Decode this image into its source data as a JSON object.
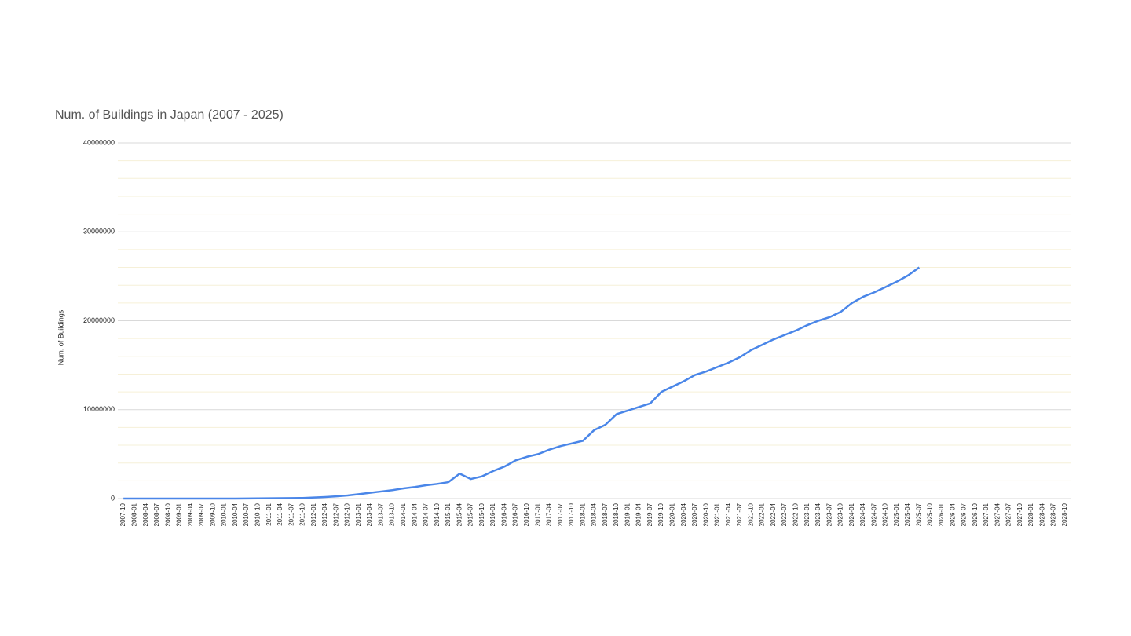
{
  "chart_data": {
    "type": "line",
    "title": "Num. of Buildings in Japan (2007 - 2025)",
    "y_label": "Num. of Buildings",
    "categories": [
      "2007-10",
      "2008-01",
      "2008-04",
      "2008-07",
      "2008-10",
      "2009-01",
      "2009-04",
      "2009-07",
      "2009-10",
      "2010-01",
      "2010-04",
      "2010-07",
      "2010-10",
      "2011-01",
      "2011-04",
      "2011-07",
      "2011-10",
      "2012-01",
      "2012-04",
      "2012-07",
      "2012-10",
      "2013-01",
      "2013-04",
      "2013-07",
      "2013-10",
      "2014-01",
      "2014-04",
      "2014-07",
      "2014-10",
      "2015-01",
      "2015-04",
      "2015-07",
      "2015-10",
      "2016-01",
      "2016-04",
      "2016-07",
      "2016-10",
      "2017-01",
      "2017-04",
      "2017-07",
      "2017-10",
      "2018-01",
      "2018-04",
      "2018-07",
      "2018-10",
      "2019-01",
      "2019-04",
      "2019-07",
      "2019-10",
      "2020-01",
      "2020-04",
      "2020-07",
      "2020-10",
      "2021-01",
      "2021-04",
      "2021-07",
      "2021-10",
      "2022-01",
      "2022-04",
      "2022-07",
      "2022-10",
      "2023-01",
      "2023-04",
      "2023-07",
      "2023-10",
      "2024-01",
      "2024-04",
      "2024-07",
      "2024-10",
      "2025-01",
      "2025-04",
      "2025-07",
      "2025-10",
      "2026-01",
      "2026-04",
      "2026-07",
      "2026-10",
      "2027-01",
      "2027-04",
      "2027-07",
      "2027-10",
      "2028-01",
      "2028-04",
      "2028-07",
      "2028-10"
    ],
    "values": [
      0,
      0,
      0,
      0,
      0,
      0,
      0,
      0,
      0,
      0,
      0,
      10000,
      20000,
      30000,
      40000,
      50000,
      70000,
      120000,
      180000,
      250000,
      350000,
      500000,
      650000,
      800000,
      950000,
      1150000,
      1300000,
      1500000,
      1650000,
      1850000,
      2800000,
      2200000,
      2500000,
      3100000,
      3600000,
      4300000,
      4700000,
      5000000,
      5500000,
      5900000,
      6200000,
      6500000,
      7700000,
      8300000,
      9500000,
      9900000,
      10300000,
      10700000,
      12000000,
      12600000,
      13200000,
      13900000,
      14300000,
      14800000,
      15300000,
      15900000,
      16700000,
      17300000,
      17900000,
      18400000,
      18900000,
      19500000,
      20000000,
      20400000,
      21000000,
      22000000,
      22700000,
      23200000,
      23800000,
      24400000,
      25100000,
      26000000,
      null,
      null,
      null,
      null,
      null,
      null,
      null,
      null,
      null,
      null,
      null,
      null,
      null
    ],
    "color": "#4a86e8",
    "ylim": [
      0,
      40000000
    ],
    "yticks": [
      0,
      10000000,
      20000000,
      30000000,
      40000000
    ],
    "grid": true
  }
}
